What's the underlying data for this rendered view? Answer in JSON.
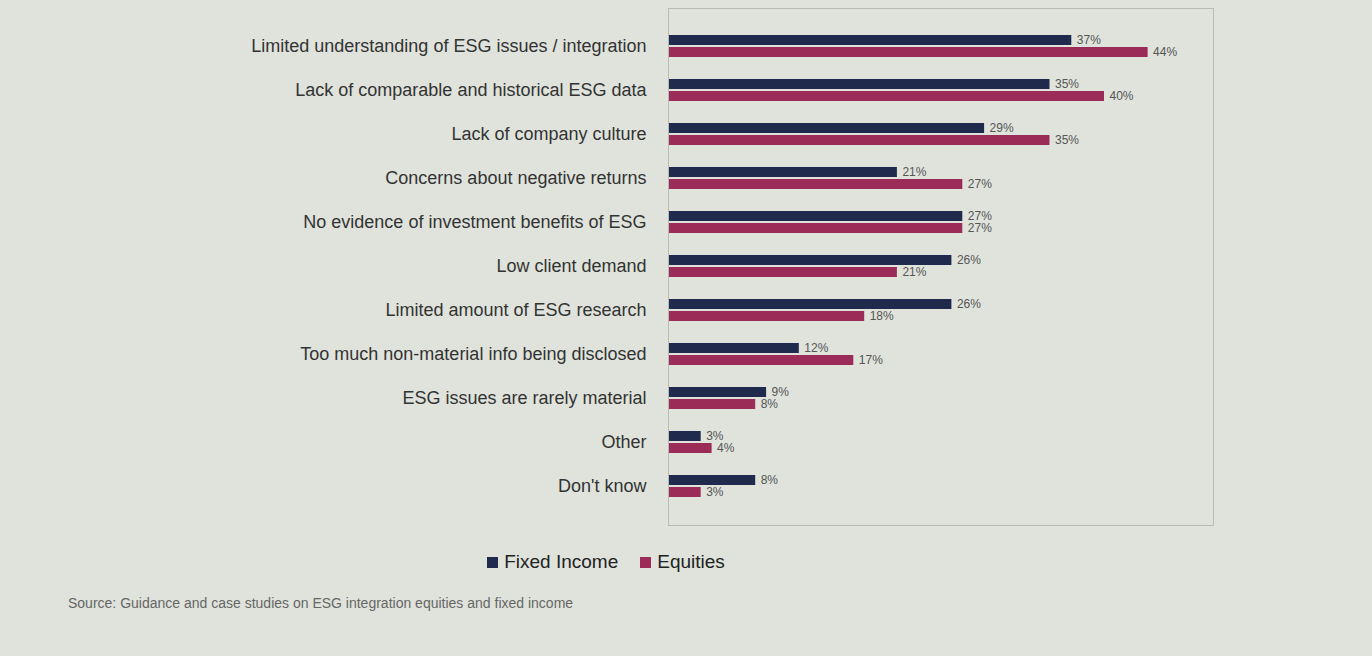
{
  "chart_data": {
    "type": "bar",
    "orientation": "horizontal",
    "categories": [
      "Limited understanding of ESG issues / integration",
      "Lack of comparable and historical ESG data",
      "Lack of company culture",
      "Concerns about negative returns",
      "No evidence of investment benefits of ESG",
      "Low client demand",
      "Limited amount of ESG research",
      "Too much non-material info being disclosed",
      "ESG issues are rarely material",
      "Other",
      "Don't know"
    ],
    "series": [
      {
        "name": "Fixed Income",
        "color": "#1f2a4d",
        "values": [
          37,
          35,
          29,
          21,
          27,
          26,
          26,
          12,
          9,
          3,
          8
        ],
        "value_labels": [
          "37%",
          "35%",
          "29%",
          "21%",
          "27%",
          "26%",
          "26%",
          "12%",
          "9%",
          "3%",
          "8%"
        ]
      },
      {
        "name": "Equities",
        "color": "#9b2c57",
        "values": [
          44,
          40,
          35,
          27,
          27,
          21,
          18,
          17,
          8,
          4,
          3
        ],
        "value_labels": [
          "44%",
          "40%",
          "35%",
          "27%",
          "27%",
          "21%",
          "18%",
          "17%",
          "8%",
          "4%",
          "3%"
        ]
      }
    ],
    "xlim": [
      0,
      50
    ],
    "grid": false,
    "data_labels": true,
    "tick_labels": "y",
    "legend": "bottom",
    "caption": "Source: Guidance and case studies on ESG integration equities and fixed income"
  }
}
